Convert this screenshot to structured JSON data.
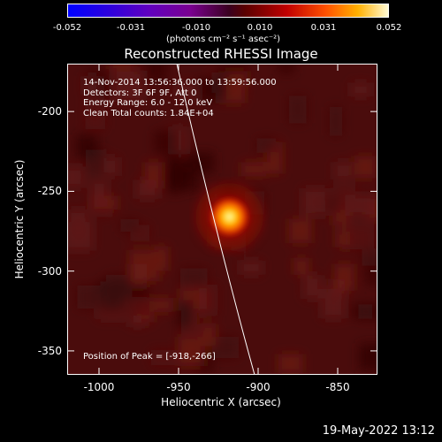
{
  "colorbar": {
    "ticks": [
      "-0.052",
      "-0.031",
      "-0.010",
      "0.010",
      "0.031",
      "0.052"
    ],
    "unit_label": "(photons cm⁻² s⁻¹ asec⁻²)"
  },
  "title": "Reconstructed RHESSI Image",
  "info": {
    "time_range": "14-Nov-2014 13:56:36.000 to 13:59:56.000",
    "detectors": "Detectors: 3F 6F 9F, Att 0",
    "energy": "Energy Range: 6.0 - 12.0 keV",
    "clean": "Clean    Total counts: 1.84E+04"
  },
  "peak_label": "Position of Peak = [-918,-266]",
  "peak": {
    "x": -918,
    "y": -266
  },
  "axes": {
    "xlabel": "Heliocentric X (arcsec)",
    "ylabel": "Heliocentric Y (arcsec)",
    "xlim": [
      -1020,
      -825
    ],
    "ylim": [
      -365,
      -170
    ],
    "xticks": [
      {
        "value": -1000,
        "label": "-1000"
      },
      {
        "value": -950,
        "label": "-950"
      },
      {
        "value": -900,
        "label": "-900"
      },
      {
        "value": -850,
        "label": "-850"
      }
    ],
    "yticks": [
      {
        "value": -200,
        "label": "-200"
      },
      {
        "value": -250,
        "label": "-250"
      },
      {
        "value": -300,
        "label": "-300"
      },
      {
        "value": -350,
        "label": "-350"
      }
    ]
  },
  "footer_date": "19-May-2022 13:12"
}
